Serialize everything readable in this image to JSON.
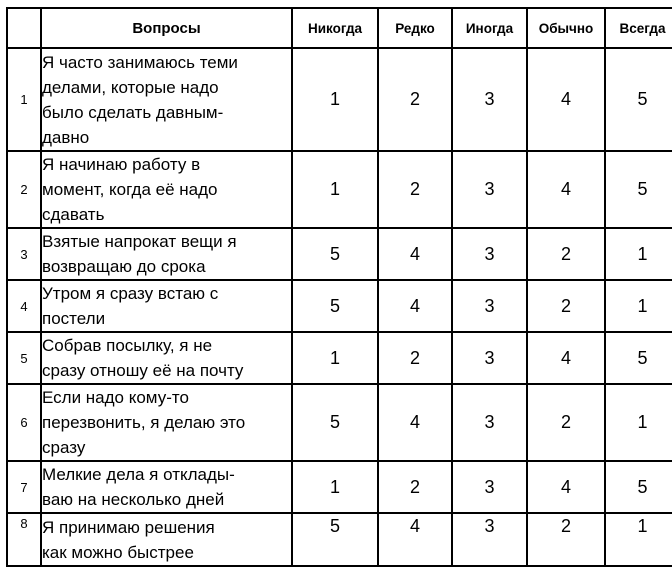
{
  "table": {
    "headers": {
      "num": "",
      "question": "Вопросы",
      "options": [
        "Никогда",
        "Редко",
        "Иногда",
        "Обычно",
        "Всегда"
      ]
    },
    "rows": [
      {
        "num": "1",
        "question": "Я часто занимаюсь теми\nделами, которые надо\nбыло сделать давным-\nдавно",
        "values": [
          "1",
          "2",
          "3",
          "4",
          "5"
        ]
      },
      {
        "num": "2",
        "question": "Я начинаю работу в\nмомент, когда её надо\nсдавать",
        "values": [
          "1",
          "2",
          "3",
          "4",
          "5"
        ]
      },
      {
        "num": "3",
        "question": "Взятые напрокат вещи я\nвозвращаю до срока",
        "values": [
          "5",
          "4",
          "3",
          "2",
          "1"
        ]
      },
      {
        "num": "4",
        "question": "Утром я сразу встаю с\nпостели",
        "values": [
          "5",
          "4",
          "3",
          "2",
          "1"
        ]
      },
      {
        "num": "5",
        "question": "Собрав посылку, я не\nсразу отношу её на почту",
        "values": [
          "1",
          "2",
          "3",
          "4",
          "5"
        ]
      },
      {
        "num": "6",
        "question": "Если надо кому-то\nперезвонить, я делаю это\nсразу",
        "values": [
          "5",
          "4",
          "3",
          "2",
          "1"
        ]
      },
      {
        "num": "7",
        "question": "Мелкие дела я отклады-\nваю на несколько дней",
        "values": [
          "1",
          "2",
          "3",
          "4",
          "5"
        ]
      },
      {
        "num": "8",
        "question": "Я принимаю решения\nкак можно быстрее",
        "values": [
          "5",
          "4",
          "3",
          "2",
          "1"
        ]
      }
    ]
  },
  "colors": {
    "border": "#000000",
    "text": "#000000",
    "background": "#ffffff"
  }
}
